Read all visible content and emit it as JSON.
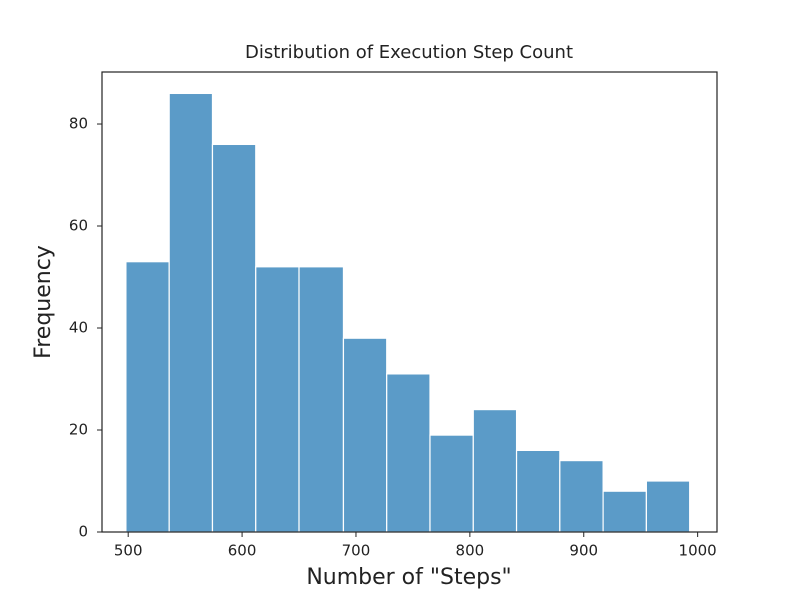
{
  "chart_data": {
    "type": "histogram",
    "title": "Distribution of Execution Step Count",
    "x_label": "Number of \"Steps\"",
    "y_label": "Frequency",
    "bins": [
      498,
      536,
      574,
      612,
      650,
      689,
      727,
      765,
      803,
      841,
      879,
      917,
      955,
      993
    ],
    "values": [
      53,
      86,
      76,
      52,
      52,
      38,
      31,
      19,
      24,
      16,
      14,
      8,
      10
    ],
    "color": "#5b9bc8",
    "xlim": [
      477,
      1017
    ],
    "xticks": [
      500,
      600,
      700,
      800,
      900,
      1000
    ],
    "ylim": [
      0,
      90.2
    ],
    "yticks": [
      0,
      20,
      40,
      60,
      80
    ]
  }
}
